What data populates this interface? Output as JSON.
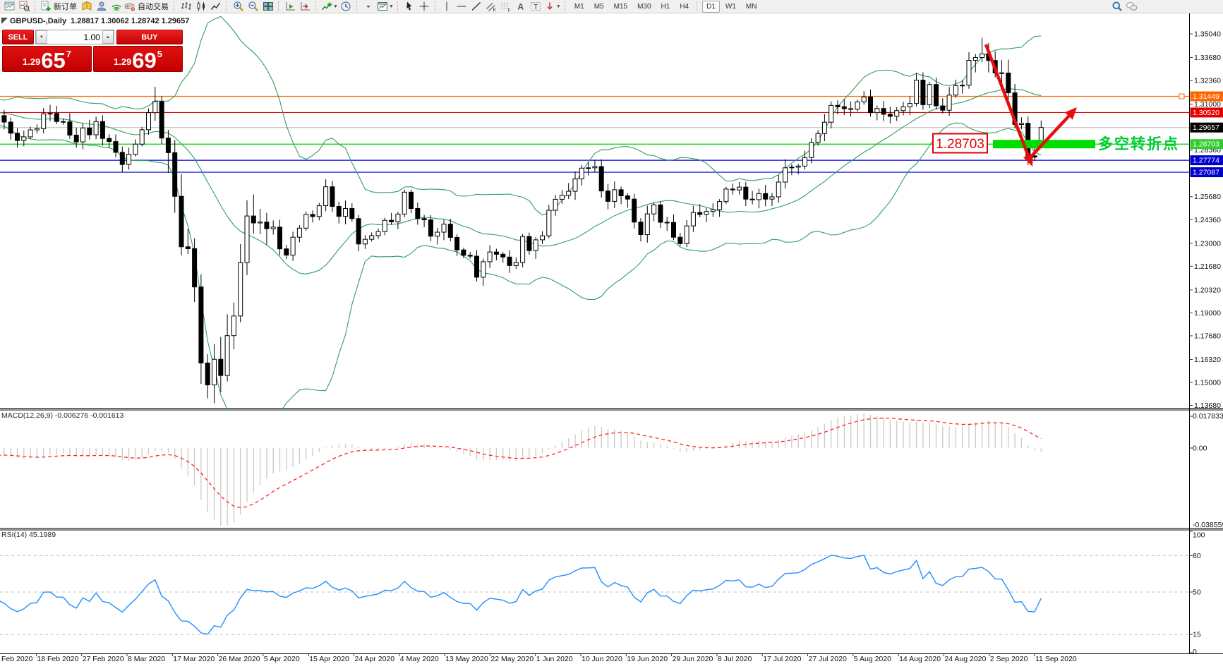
{
  "toolbar": {
    "groups": [
      {
        "items": [
          {
            "icon": "chart-window"
          },
          {
            "icon": "tick-chart"
          }
        ]
      },
      {
        "items": [
          {
            "icon": "new-order",
            "label": "新订单"
          },
          {
            "icon": "metaeditor"
          },
          {
            "icon": "market"
          },
          {
            "icon": "signals"
          },
          {
            "icon": "autotrading",
            "label": "自动交易"
          }
        ]
      },
      {
        "items": [
          {
            "icon": "bars-chart"
          },
          {
            "icon": "candle-chart"
          },
          {
            "icon": "line-chart"
          }
        ]
      },
      {
        "items": [
          {
            "icon": "zoom-in"
          },
          {
            "icon": "zoom-out"
          },
          {
            "icon": "tile-windows"
          }
        ]
      },
      {
        "items": [
          {
            "icon": "autoscroll"
          },
          {
            "icon": "chart-shift"
          }
        ]
      },
      {
        "items": [
          {
            "icon": "indicators",
            "caret": true
          },
          {
            "icon": "clock"
          }
        ]
      },
      {
        "items": [
          {
            "icon": "caret-only"
          },
          {
            "icon": "template",
            "caret": true
          }
        ]
      },
      {
        "items": [
          {
            "icon": "cursor"
          },
          {
            "icon": "crosshair"
          }
        ]
      },
      {
        "items": [
          {
            "icon": "vline"
          },
          {
            "icon": "hline"
          },
          {
            "icon": "trendline"
          },
          {
            "icon": "channel"
          },
          {
            "icon": "fibonacci"
          },
          {
            "icon": "text"
          },
          {
            "icon": "text-label"
          },
          {
            "icon": "arrows-tool",
            "caret": true
          }
        ]
      },
      {
        "timeframes": [
          {
            "label": "M1"
          },
          {
            "label": "M5"
          },
          {
            "label": "M15"
          },
          {
            "label": "M30"
          },
          {
            "label": "H1"
          },
          {
            "label": "H4"
          }
        ]
      },
      {
        "timeframes": [
          {
            "label": "D1",
            "active": true
          },
          {
            "label": "W1"
          },
          {
            "label": "MN"
          }
        ]
      },
      {
        "right": true,
        "items": [
          {
            "icon": "search"
          },
          {
            "icon": "chat"
          }
        ]
      }
    ]
  },
  "quote_panel": {
    "sell_label": "SELL",
    "buy_label": "BUY",
    "volume": "1.00",
    "sell": {
      "small": "1.29",
      "big": "65",
      "sup": "7"
    },
    "buy": {
      "small": "1.29",
      "big": "69",
      "sup": "5"
    }
  },
  "chart": {
    "title": "GBPUSD-,Daily  1.28817 1.30062 1.28742 1.29657",
    "macd_label": "MACD(12,26,9) -0.006276 -0.001613",
    "rsi_label": "RSI(14) 45.1989"
  },
  "chart_data": {
    "type": "candlestick",
    "symbol": "GBPUSD-",
    "timeframe": "Daily",
    "ohlc_display": {
      "open": "1.28817",
      "high": "1.30062",
      "low": "1.28742",
      "close": "1.29657"
    },
    "current_price": 1.29657,
    "y_axis": {
      "ticks": [
        "1.35040",
        "1.33680",
        "1.32360",
        "1.31000",
        "1.28360",
        "1.25680",
        "1.24360",
        "1.23000",
        "1.21680",
        "1.20320",
        "1.19000",
        "1.17680",
        "1.16320",
        "1.15000",
        "1.13680"
      ],
      "visible_min": 1.1354,
      "visible_max": 1.3622
    },
    "price_badges": [
      {
        "value": "1.31449",
        "price": 1.31449,
        "color": "#ff6600"
      },
      {
        "value": "1.30520",
        "price": 1.3052,
        "color": "#e60000"
      },
      {
        "value": "1.29657",
        "price": 1.29657,
        "color": "#000000"
      },
      {
        "value": "1.28703",
        "price": 1.28703,
        "color": "#2fce2f"
      },
      {
        "value": "1.27774",
        "price": 1.27774,
        "color": "#0000cd"
      },
      {
        "value": "1.27087",
        "price": 1.27087,
        "color": "#0000cd"
      }
    ],
    "x_axis": {
      "labels": [
        "Feb 2020",
        "18 Feb 2020",
        "27 Feb 2020",
        "8 Mar 2020",
        "17 Mar 2020",
        "26 Mar 2020",
        "5 Apr 2020",
        "15 Apr 2020",
        "24 Apr 2020",
        "4 May 2020",
        "13 May 2020",
        "22 May 2020",
        "1 Jun 2020",
        "10 Jun 2020",
        "19 Jun 2020",
        "29 Jun 2020",
        "8 Jul 2020",
        "17 Jul 2020",
        "27 Jul 2020",
        "5 Aug 2020",
        "14 Aug 2020",
        "24 Aug 2020",
        "2 Sep 2020",
        "11 Sep 2020"
      ]
    },
    "warmup_closes": [
      1.333,
      1.3325,
      1.318,
      1.3102,
      1.3075,
      1.3,
      1.2925,
      1.2985,
      1.3005,
      1.3105,
      1.311,
      1.3262,
      1.3252,
      1.3118,
      1.3154,
      1.317,
      1.3125,
      1.311,
      1.3065,
      1.3082,
      1.3119,
      1.304,
      1.3042,
      1.3038,
      1.3011,
      1.3005,
      1.3009,
      1.3046,
      1.3121,
      1.3073,
      1.305,
      1.3026,
      1.302,
      1.3098,
      1.309
    ],
    "closes": [
      1.2998,
      1.3034,
      1.2997,
      1.2933,
      1.2891,
      1.2912,
      1.2952,
      1.2959,
      1.3045,
      1.3047,
      1.3,
      1.2998,
      1.2922,
      1.2883,
      1.2963,
      1.2924,
      1.3,
      1.2903,
      1.2885,
      1.2823,
      1.2753,
      1.2812,
      1.287,
      1.2953,
      1.3051,
      1.3115,
      1.2905,
      1.2821,
      1.257,
      1.228,
      1.2269,
      1.2049,
      1.1612,
      1.1486,
      1.1633,
      1.154,
      1.1769,
      1.1882,
      1.2189,
      1.2457,
      1.2417,
      1.2422,
      1.2384,
      1.2393,
      1.2268,
      1.2232,
      1.2335,
      1.2387,
      1.2466,
      1.2454,
      1.2516,
      1.2625,
      1.2512,
      1.2455,
      1.25,
      1.2442,
      1.2296,
      1.2323,
      1.2344,
      1.2367,
      1.2432,
      1.2424,
      1.2468,
      1.2594,
      1.25,
      1.2442,
      1.2435,
      1.2341,
      1.2364,
      1.241,
      1.2334,
      1.2262,
      1.2231,
      1.2226,
      1.2105,
      1.2194,
      1.225,
      1.2237,
      1.2221,
      1.2172,
      1.219,
      1.2339,
      1.2258,
      1.232,
      1.2343,
      1.249,
      1.2553,
      1.2576,
      1.2599,
      1.267,
      1.2732,
      1.2734,
      1.2741,
      1.2601,
      1.2541,
      1.2608,
      1.2573,
      1.2554,
      1.2422,
      1.235,
      1.2469,
      1.2521,
      1.2421,
      1.242,
      1.2335,
      1.2298,
      1.24,
      1.2477,
      1.2466,
      1.2483,
      1.2493,
      1.254,
      1.2612,
      1.2607,
      1.2623,
      1.2554,
      1.2551,
      1.2586,
      1.2554,
      1.2567,
      1.2652,
      1.2734,
      1.2738,
      1.2744,
      1.2793,
      1.288,
      1.2931,
      1.2996,
      1.3093,
      1.3085,
      1.3074,
      1.3071,
      1.3113,
      1.3141,
      1.3051,
      1.3075,
      1.3042,
      1.303,
      1.3063,
      1.3085,
      1.3104,
      1.3238,
      1.3097,
      1.3213,
      1.309,
      1.3065,
      1.3152,
      1.3206,
      1.3209,
      1.3352,
      1.3368,
      1.3389,
      1.3351,
      1.328,
      1.3279,
      1.3165,
      1.2983,
      1.299,
      1.2803,
      1.2795,
      1.2966
    ],
    "overrides": {
      "25": {
        "h": 1.32
      },
      "33": {
        "l": 1.1409
      },
      "151": {
        "h": 1.3482
      },
      "159": {
        "l": 1.2774
      },
      "160": {
        "o": 1.28817,
        "h": 1.30062,
        "l": 1.28742,
        "c": 1.29657
      }
    },
    "indicators": {
      "bollinger": {
        "period": 20,
        "deviation": 2,
        "color": "#2f9e60"
      },
      "macd": {
        "label": "MACD(12,26,9)",
        "main": "-0.006276",
        "signal": "-0.001613",
        "axis_max": "0.017833",
        "axis_zero": "0.00",
        "axis_min": "-0.038559",
        "hist_color": "#c9c9c9",
        "signal_color": "#ff2222"
      },
      "rsi": {
        "label": "RSI(14)",
        "value": "45.1989",
        "color": "#1e90ff",
        "levels": [
          {
            "text": "100",
            "v": 100
          },
          {
            "text": "80",
            "v": 80
          },
          {
            "text": "50",
            "v": 50
          },
          {
            "text": "15",
            "v": 15
          },
          {
            "text": "0",
            "v": 0
          }
        ]
      }
    },
    "objects": {
      "hlines": [
        {
          "price": 1.31449,
          "color": "#ff6600"
        },
        {
          "price": 1.3052,
          "color": "#e60000"
        },
        {
          "price": 1.28703,
          "color": "#00cc00"
        },
        {
          "price": 1.27774,
          "color": "#0000cc"
        },
        {
          "price": 1.27087,
          "color": "#0000cc"
        }
      ],
      "price_flag": {
        "text": "1.28703",
        "color": "#e00000"
      },
      "support_zone": {
        "color": "#00dd00",
        "price": 1.28703
      },
      "note_text": {
        "text": "多空转折点",
        "color": "#00cc33"
      },
      "arrows_color": "#e80c0c"
    }
  }
}
